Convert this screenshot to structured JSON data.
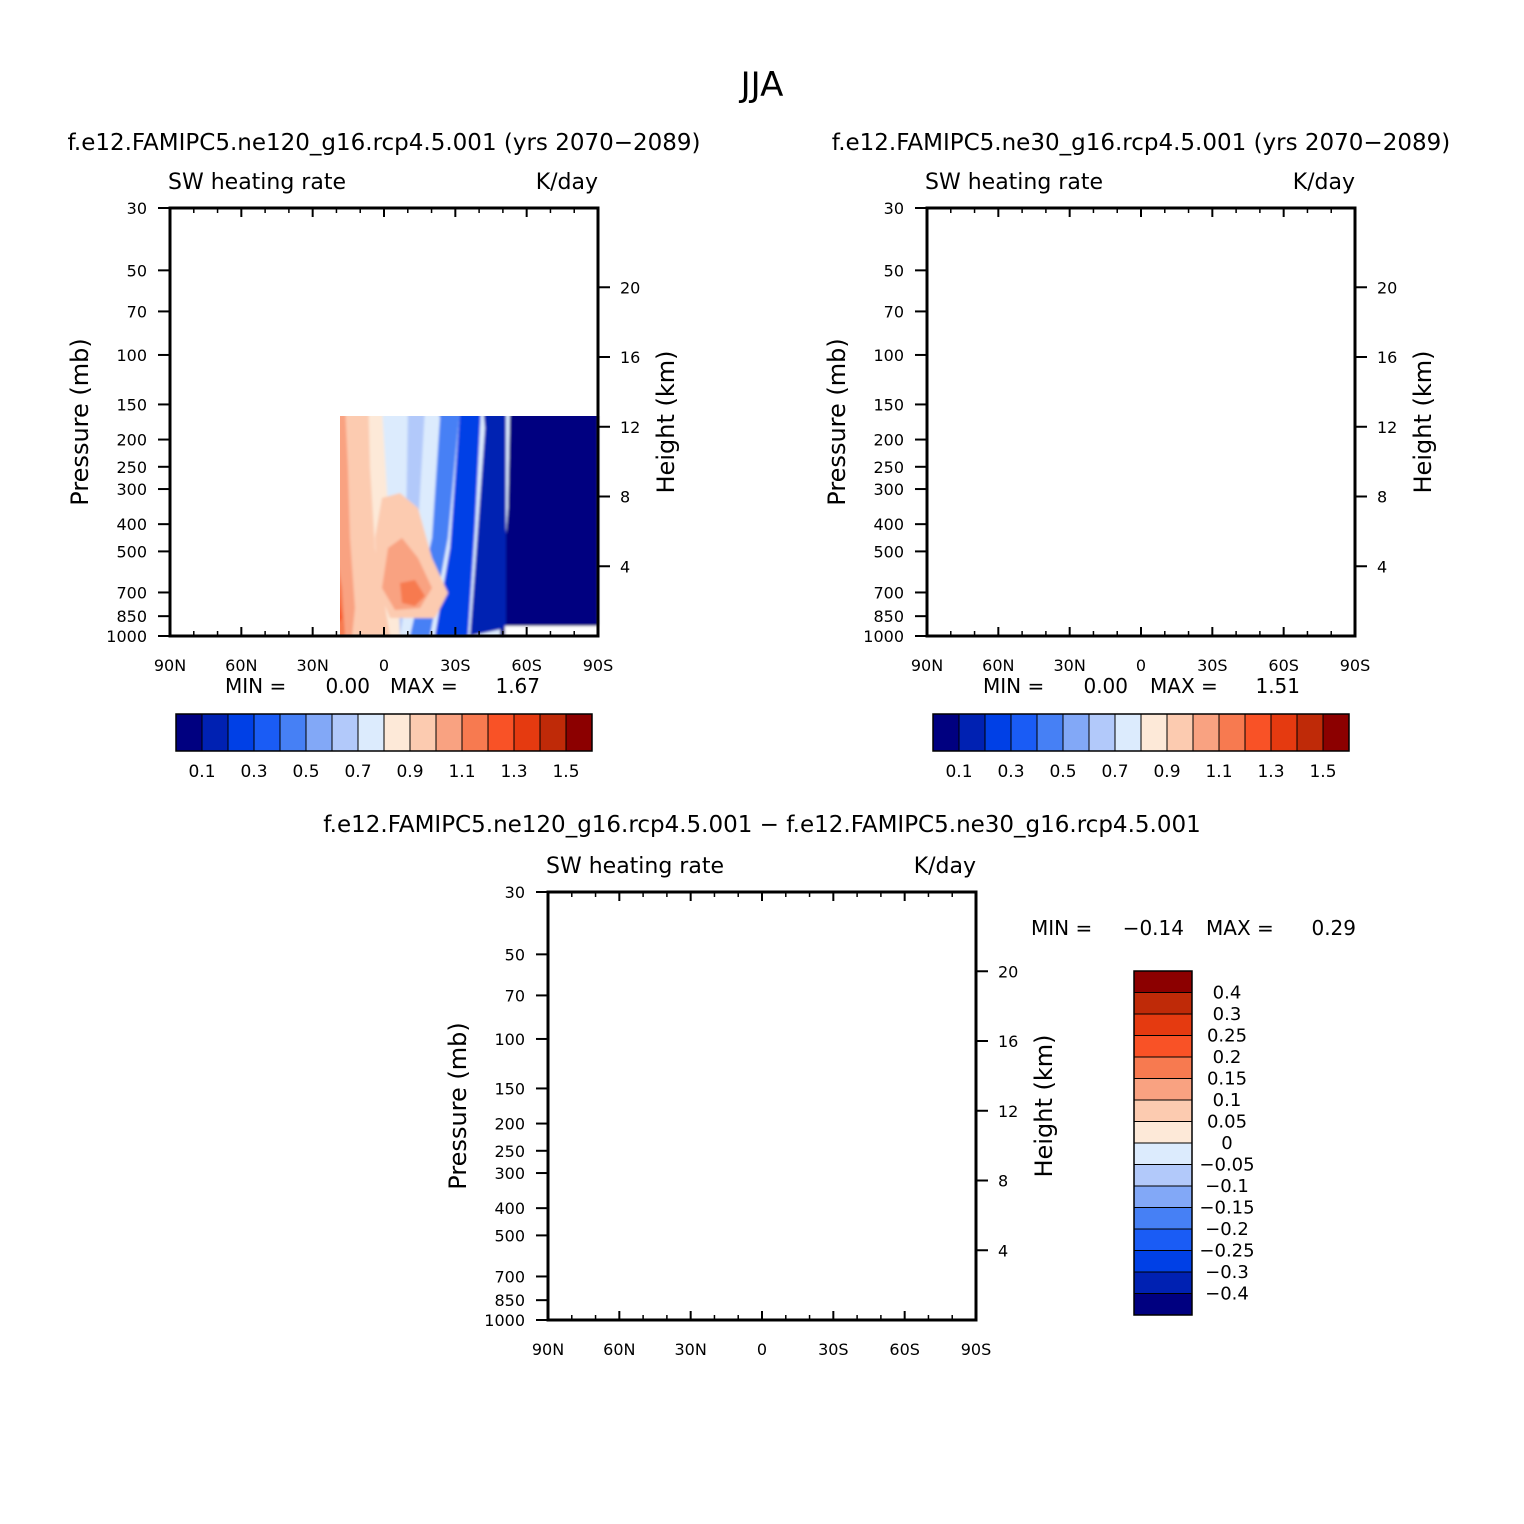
{
  "figure": {
    "title": "JJA",
    "diff_title": "f.e12.FAMIPC5.ne120_g16.rcp4.5.001 − f.e12.FAMIPC5.ne30_g16.rcp4.5.001"
  },
  "colors": {
    "abs_levels": [
      "#000080",
      "#0021b2",
      "#0040e6",
      "#1a5cf5",
      "#4680f5",
      "#82a8f7",
      "#b2c9fa",
      "#dcebfd",
      "#fde9d8",
      "#fccbb0",
      "#f9a281",
      "#f77a50",
      "#f95226",
      "#e53a10",
      "#bf2a08",
      "#8c0000"
    ],
    "diff_levels": [
      "#000080",
      "#0021b2",
      "#0040e6",
      "#1a5cf5",
      "#4680f5",
      "#82a8f7",
      "#b2c9fa",
      "#dcebfd",
      "#fde9d8",
      "#fccbb0",
      "#f9a281",
      "#f77a50",
      "#f95226",
      "#e53a10",
      "#bf2a08",
      "#8c0000"
    ]
  },
  "chart_data": [
    {
      "type": "contour",
      "subtitle": "f.e12.FAMIPC5.ne120_g16.rcp4.5.001 (yrs 2070−2089)",
      "left_label": "SW heating rate",
      "right_label": "K/day",
      "ylabel": "Pressure (mb)",
      "y2label": "Height (km)",
      "x_ticks": [
        "90N",
        "60N",
        "30N",
        "0",
        "30S",
        "60S",
        "90S"
      ],
      "y_ticks": [
        "30",
        "50",
        "70",
        "100",
        "150",
        "200",
        "250",
        "300",
        "400",
        "500",
        "700",
        "850",
        "1000"
      ],
      "y2_ticks": [
        "20",
        "16",
        "12",
        "8",
        "4"
      ],
      "min_label": "MIN =",
      "min_value": "0.00",
      "max_label": "MAX =",
      "max_value": "1.67",
      "colorbar_labels": [
        "0.1",
        "0.3",
        "0.5",
        "0.7",
        "0.9",
        "1.1",
        "1.3",
        "1.5"
      ]
    },
    {
      "type": "contour",
      "subtitle": "f.e12.FAMIPC5.ne30_g16.rcp4.5.001 (yrs 2070−2089)",
      "left_label": "SW heating rate",
      "right_label": "K/day",
      "ylabel": "Pressure (mb)",
      "y2label": "Height (km)",
      "x_ticks": [
        "90N",
        "60N",
        "30N",
        "0",
        "30S",
        "60S",
        "90S"
      ],
      "y_ticks": [
        "30",
        "50",
        "70",
        "100",
        "150",
        "200",
        "250",
        "300",
        "400",
        "500",
        "700",
        "850",
        "1000"
      ],
      "y2_ticks": [
        "20",
        "16",
        "12",
        "8",
        "4"
      ],
      "min_label": "MIN =",
      "min_value": "0.00",
      "max_label": "MAX =",
      "max_value": "1.51",
      "colorbar_labels": [
        "0.1",
        "0.3",
        "0.5",
        "0.7",
        "0.9",
        "1.1",
        "1.3",
        "1.5"
      ]
    },
    {
      "type": "contour",
      "subtitle": "",
      "left_label": "SW heating rate",
      "right_label": "K/day",
      "ylabel": "Pressure (mb)",
      "y2label": "Height (km)",
      "x_ticks": [
        "90N",
        "60N",
        "30N",
        "0",
        "30S",
        "60S",
        "90S"
      ],
      "y_ticks": [
        "30",
        "50",
        "70",
        "100",
        "150",
        "200",
        "250",
        "300",
        "400",
        "500",
        "700",
        "850",
        "1000"
      ],
      "y2_ticks": [
        "20",
        "16",
        "12",
        "8",
        "4"
      ],
      "min_label": "MIN =",
      "min_value": "−0.14",
      "max_label": "MAX =",
      "max_value": "0.29",
      "colorbar_labels": [
        "0.4",
        "0.3",
        "0.25",
        "0.2",
        "0.15",
        "0.1",
        "0.05",
        "0",
        "−0.05",
        "−0.1",
        "−0.15",
        "−0.2",
        "−0.25",
        "−0.3",
        "−0.4"
      ]
    }
  ]
}
